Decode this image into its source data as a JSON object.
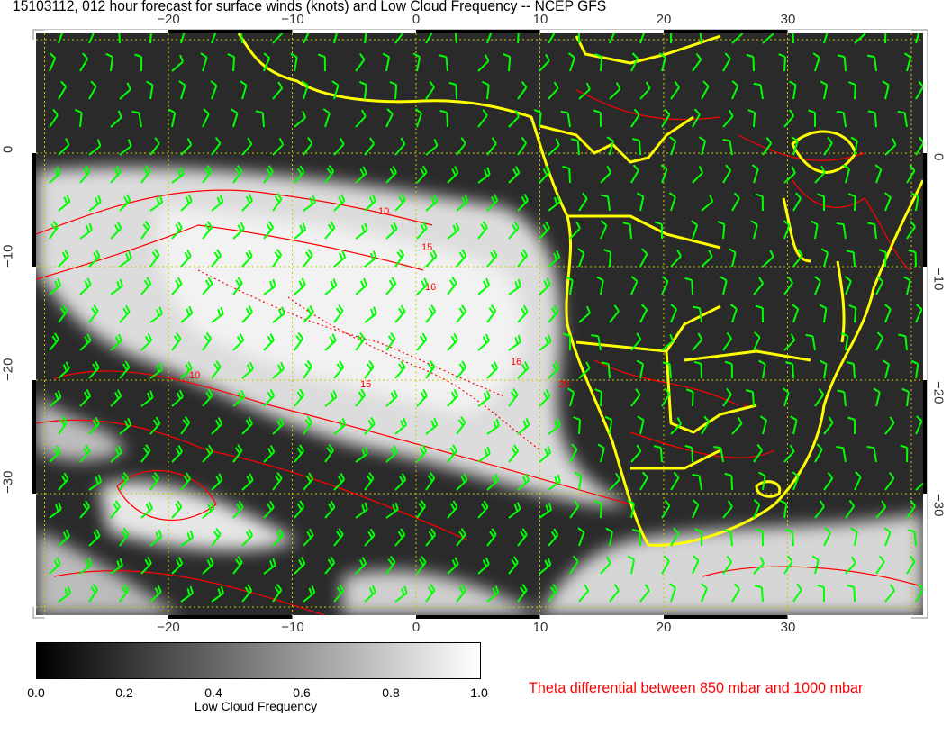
{
  "title": "15103112, 012 hour forecast for surface winds (knots) and Low Cloud Frequency -- NCEP GFS",
  "map": {
    "lon_ticks": [
      "−20",
      "−10",
      "0",
      "10",
      "20",
      "30"
    ],
    "lat_ticks": [
      "0",
      "−10",
      "−20",
      "−30"
    ],
    "contour_labels": [
      "10",
      "15",
      "16",
      "6",
      "10",
      "15",
      "16",
      "20"
    ],
    "colors": {
      "coastline": "#ffff00",
      "wind_barbs": "#00ff00",
      "theta_contours": "#ff0000",
      "grid": "#cccc00"
    }
  },
  "colorbar": {
    "ticks": [
      "0.0",
      "0.2",
      "0.4",
      "0.6",
      "0.8",
      "1.0"
    ],
    "label": "Low Cloud Frequency",
    "range": [
      0.0,
      1.0
    ]
  },
  "theta_label": "Theta differential between 850 mbar and 1000 mbar"
}
